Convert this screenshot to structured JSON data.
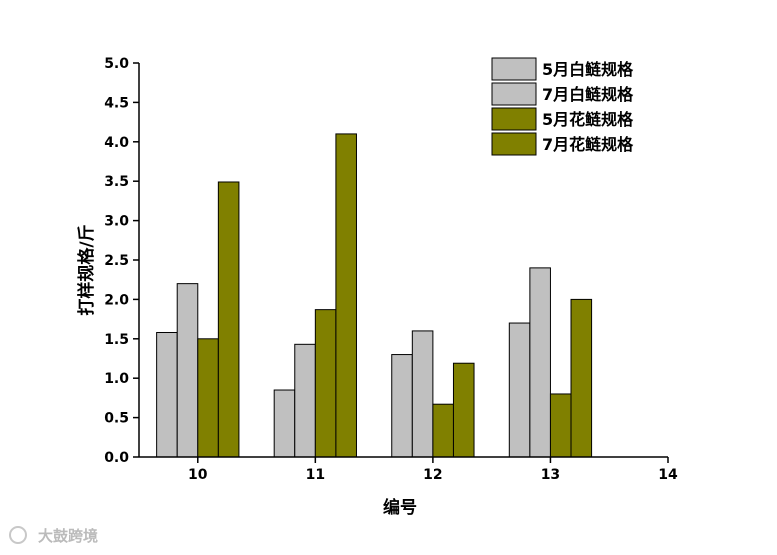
{
  "chart_data": {
    "type": "bar",
    "categories": [
      "10",
      "11",
      "12",
      "13"
    ],
    "x_ticks": [
      "10",
      "11",
      "12",
      "13",
      "14"
    ],
    "series": [
      {
        "name": "5月白鲢规格",
        "values": [
          1.58,
          0.85,
          1.3,
          1.7
        ],
        "color": "#c0c0c0"
      },
      {
        "name": "7月白鲢规格",
        "values": [
          2.2,
          1.43,
          1.6,
          2.4
        ],
        "color": "#c0c0c0"
      },
      {
        "name": "5月花鲢规格",
        "values": [
          1.5,
          1.87,
          0.67,
          0.8
        ],
        "color": "#808000"
      },
      {
        "name": "7月花鲢规格",
        "values": [
          3.49,
          4.1,
          1.19,
          2.0
        ],
        "color": "#808000"
      }
    ],
    "y_ticks": [
      "0.0",
      "0.5",
      "1.0",
      "1.5",
      "2.0",
      "2.5",
      "3.0",
      "3.5",
      "4.0",
      "4.5",
      "5.0"
    ],
    "xlabel": "编号",
    "ylabel": "打样规格/斤",
    "ylim": [
      0,
      5
    ],
    "xlim": [
      9.5,
      14
    ],
    "grid": false,
    "legend_position": "top-right"
  },
  "watermark": "大鼓跨境"
}
